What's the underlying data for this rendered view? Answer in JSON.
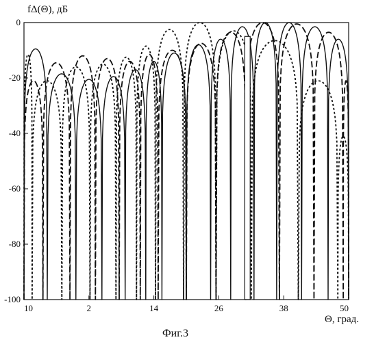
{
  "chart_data": {
    "type": "line",
    "ylabel": "fΔ(Θ), дБ",
    "xlabel": "Θ, град.",
    "caption": "Фиг.3",
    "xlim": [
      -10,
      50
    ],
    "ylim": [
      -100,
      0
    ],
    "x_ticks": [
      -10,
      2,
      14,
      26,
      38,
      50
    ],
    "x_tick_labels": [
      "10",
      "2",
      "14",
      "26",
      "38",
      "50"
    ],
    "y_ticks": [
      0,
      -20,
      -40,
      -60,
      -80,
      -100
    ],
    "y_tick_labels": [
      "0",
      "-20",
      "-40",
      "-60",
      "-80",
      "-100"
    ],
    "grid": false,
    "series": [
      {
        "style": "solid",
        "nulls": [
          -5.7,
          -0.4,
          4.4,
          8.7,
          12.5,
          15.5,
          20.0,
          24.5,
          28.2,
          32.5,
          36.7,
          41.3,
          46.2
        ],
        "peaks": [
          -9.5,
          -18.5,
          -20.5,
          -19.5,
          -17.0,
          -14.0,
          -11.0,
          -8.0,
          -6.0,
          -1.5,
          0,
          0,
          -1.5,
          -6.0,
          -12.0,
          -20.5,
          -20.5,
          -21.0,
          -20.0,
          -19.0
        ]
      },
      {
        "style": "dashed",
        "nulls": [
          -6.5,
          -1.5,
          3.2,
          7.6,
          11.5,
          14.8,
          20.0,
          25.5,
          31.0,
          37.2,
          43.6,
          49.0
        ],
        "peaks": [
          -21.0,
          -14.5,
          -12.0,
          -13.0,
          -14.0,
          -11.5,
          -10.0,
          -7.5,
          -3.5,
          0,
          -0.5,
          -3.5,
          -21.0,
          -12.0,
          -20.0,
          -24.0
        ]
      },
      {
        "style": "dotted",
        "nulls": [
          -8.5,
          -3.0,
          2.2,
          7.0,
          10.8,
          14.3,
          19.5,
          25.5,
          32.0,
          40.7,
          48.0
        ],
        "peaks": [
          -11.5,
          -21.0,
          -16.0,
          -15.0,
          -12.5,
          -8.5,
          -2.5,
          0,
          -3.0,
          -6.5,
          -21.0,
          -41.0,
          -28.0
        ]
      }
    ],
    "annotation": {
      "type": "bar",
      "x_start": 30.8,
      "x_end": 31.8,
      "y_top": -5,
      "y_bottom": -100
    }
  }
}
